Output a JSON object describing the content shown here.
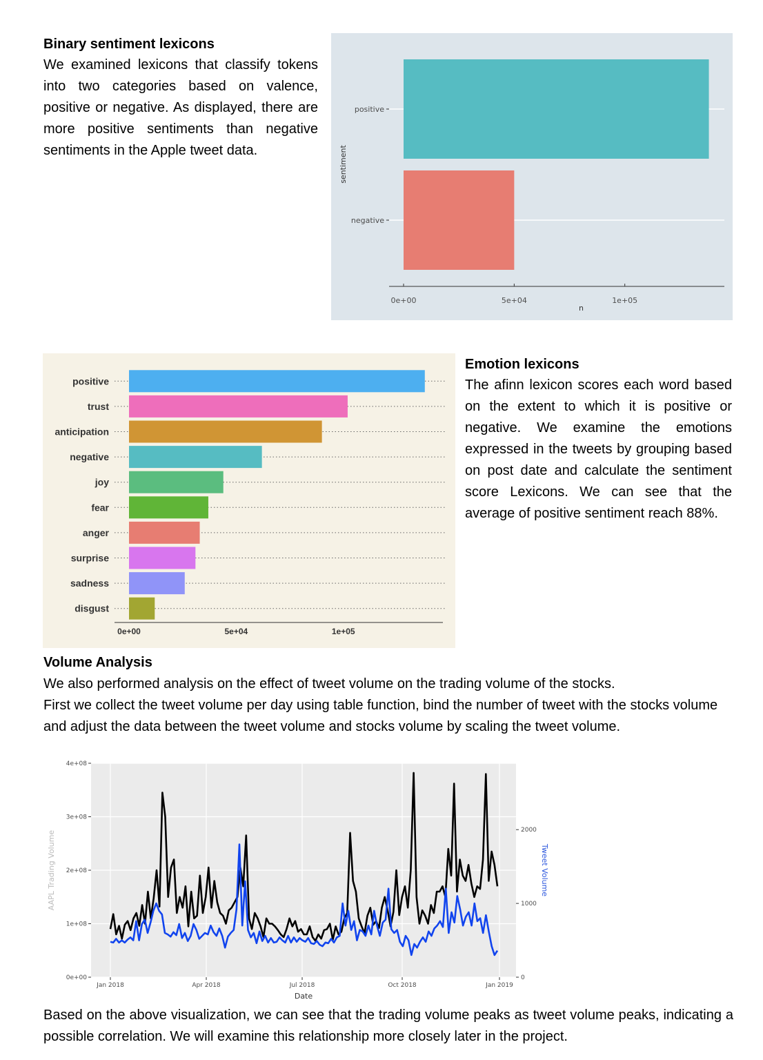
{
  "binary_section": {
    "heading": "Binary sentiment lexicons",
    "body": "We examined lexicons that classify tokens into two categories based on valence, positive or negative. As displayed, there are more positive sentiments than negative sentiments in the Apple tweet data."
  },
  "emotion_section": {
    "heading": "Emotion lexicons",
    "body": "The afinn lexicon scores each word based on the extent to which it is positive or negative. We examine the emotions expressed in the tweets by grouping based on post date and calculate the sentiment score Lexicons. We can see that the average of positive sentiment reach 88%."
  },
  "volume_section": {
    "heading": "Volume Analysis",
    "line1": "We also performed analysis on the effect of tweet volume on the trading volume of the stocks.",
    "line2": "First we collect the tweet volume per day using table function, bind the number of tweet with the stocks volume and adjust the data between the tweet volume and stocks volume by scaling the tweet volume."
  },
  "conclusion": {
    "body": "Based on the above visualization, we can see that the trading volume peaks as tweet volume peaks, indicating a possible correlation. We will examine this relationship more closely later in the project."
  },
  "chart_data": [
    {
      "id": "binary",
      "type": "bar",
      "orientation": "horizontal",
      "xlabel": "n",
      "ylabel": "sentiment",
      "categories": [
        "positive",
        "negative"
      ],
      "values": [
        138000,
        50000
      ],
      "colors": [
        "#56bcc2",
        "#e77d72"
      ],
      "xticks": [
        0,
        50000,
        100000
      ],
      "xtick_labels": [
        "0e+00",
        "5e+04",
        "1e+05"
      ],
      "xlim": [
        0,
        145000
      ],
      "background": "#dde5eb"
    },
    {
      "id": "emotion",
      "type": "bar",
      "orientation": "horizontal",
      "categories": [
        "positive",
        "trust",
        "anticipation",
        "negative",
        "joy",
        "fear",
        "anger",
        "surprise",
        "sadness",
        "disgust"
      ],
      "values": [
        138000,
        102000,
        90000,
        62000,
        44000,
        37000,
        33000,
        31000,
        26000,
        12000
      ],
      "colors": [
        "#4daff0",
        "#ee6ebb",
        "#d09534",
        "#56bcc2",
        "#5bbd7f",
        "#60b537",
        "#e77d72",
        "#d876ee",
        "#9094f8",
        "#a2a632"
      ],
      "xticks": [
        0,
        50000,
        100000
      ],
      "xtick_labels": [
        "0e+00",
        "5e+04",
        "1e+05"
      ],
      "xlim": [
        0,
        140000
      ],
      "background": "#f6f2e6"
    },
    {
      "id": "volume",
      "type": "line",
      "xlabel": "Date",
      "ylabel_left": "AAPL Trading Volume",
      "ylabel_right": "Tweet Volume",
      "x_range": [
        "2018-01-01",
        "2018-12-31"
      ],
      "xticks": [
        "Jan 2018",
        "Apr 2018",
        "Jul 2018",
        "Oct 2018",
        "Jan 2019"
      ],
      "yticks_left": [
        "0e+00",
        "1e+08",
        "2e+08",
        "3e+08",
        "4e+08"
      ],
      "ylim_left": [
        0,
        400000000
      ],
      "yticks_right": [
        "0",
        "1000",
        "2000"
      ],
      "ylim_right": [
        0,
        2900
      ],
      "series": [
        {
          "color": "#000000",
          "values": [
            90,
            118,
            80,
            96,
            72,
            98,
            105,
            88,
            110,
            120,
            96,
            135,
            100,
            160,
            110,
            148,
            200,
            132,
            345,
            300,
            150,
            205,
            220,
            120,
            150,
            130,
            170,
            95,
            160,
            110,
            115,
            190,
            120,
            150,
            205,
            130,
            180,
            140,
            120,
            115,
            100,
            125,
            130,
            140,
            150,
            205,
            170,
            265,
            110,
            90,
            120,
            110,
            95,
            75,
            110,
            100,
            100,
            95,
            88,
            80,
            75,
            90,
            110,
            95,
            105,
            85,
            90,
            80,
            80,
            95,
            75,
            68,
            80,
            72,
            88,
            90,
            100,
            70,
            95,
            80,
            85,
            110,
            120,
            270,
            180,
            160,
            110,
            95,
            82,
            115,
            130,
            98,
            105,
            92,
            130,
            150,
            125,
            95,
            122,
            200,
            116,
            150,
            170,
            130,
            200,
            382,
            150,
            100,
            125,
            115,
            100,
            135,
            120,
            160,
            160,
            170,
            150,
            240,
            190,
            362,
            160,
            220,
            190,
            180,
            210,
            175,
            150,
            170,
            165,
            220,
            380,
            180,
            235,
            210,
            170
          ]
        },
        {
          "color": "#1144ee",
          "values": [
            480,
            470,
            520,
            470,
            500,
            470,
            510,
            540,
            500,
            760,
            500,
            720,
            780,
            600,
            740,
            900,
            1000,
            900,
            850,
            600,
            580,
            550,
            610,
            570,
            720,
            530,
            600,
            490,
            560,
            720,
            640,
            520,
            560,
            600,
            580,
            700,
            610,
            560,
            660,
            560,
            400,
            550,
            600,
            640,
            920,
            1800,
            700,
            1300,
            640,
            540,
            600,
            460,
            620,
            490,
            560,
            470,
            530,
            470,
            480,
            540,
            500,
            470,
            560,
            470,
            540,
            480,
            530,
            500,
            480,
            530,
            460,
            450,
            490,
            440,
            420,
            470,
            460,
            520,
            470,
            540,
            560,
            1000,
            700,
            900,
            640,
            760,
            500,
            640,
            620,
            560,
            700,
            580,
            900,
            700,
            560,
            740,
            780,
            1200,
            650,
            600,
            640,
            480,
            420,
            560,
            500,
            300,
            450,
            400,
            480,
            540,
            480,
            620,
            560,
            660,
            700,
            760,
            680,
            1200,
            600,
            880,
            740,
            1100,
            920,
            700,
            820,
            880,
            700,
            1000,
            760,
            800,
            600,
            840,
            620,
            420,
            300,
            360
          ]
        }
      ]
    }
  ]
}
